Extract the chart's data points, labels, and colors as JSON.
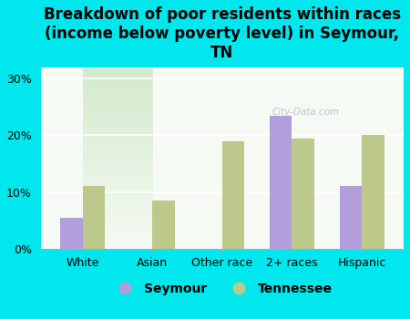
{
  "title": "Breakdown of poor residents within races\n(income below poverty level) in Seymour,\nTN",
  "categories": [
    "White",
    "Asian",
    "Other race",
    "2+ races",
    "Hispanic"
  ],
  "seymour_values": [
    5.5,
    0,
    0,
    23.5,
    11.0
  ],
  "tennessee_values": [
    11.0,
    8.5,
    19.0,
    19.5,
    20.0
  ],
  "seymour_color": "#b39ddb",
  "tennessee_color": "#bcc98a",
  "background_outer": "#00e8ee",
  "background_inner_top": "#f5faf5",
  "background_inner_bottom": "#d4eacc",
  "ylim": [
    0,
    32
  ],
  "yticks": [
    0,
    10,
    20,
    30
  ],
  "ytick_labels": [
    "0%",
    "10%",
    "20%",
    "30%"
  ],
  "bar_width": 0.32,
  "legend_labels": [
    "Seymour",
    "Tennessee"
  ],
  "title_fontsize": 12,
  "axis_fontsize": 9,
  "legend_fontsize": 10,
  "watermark": "City-Data.com"
}
